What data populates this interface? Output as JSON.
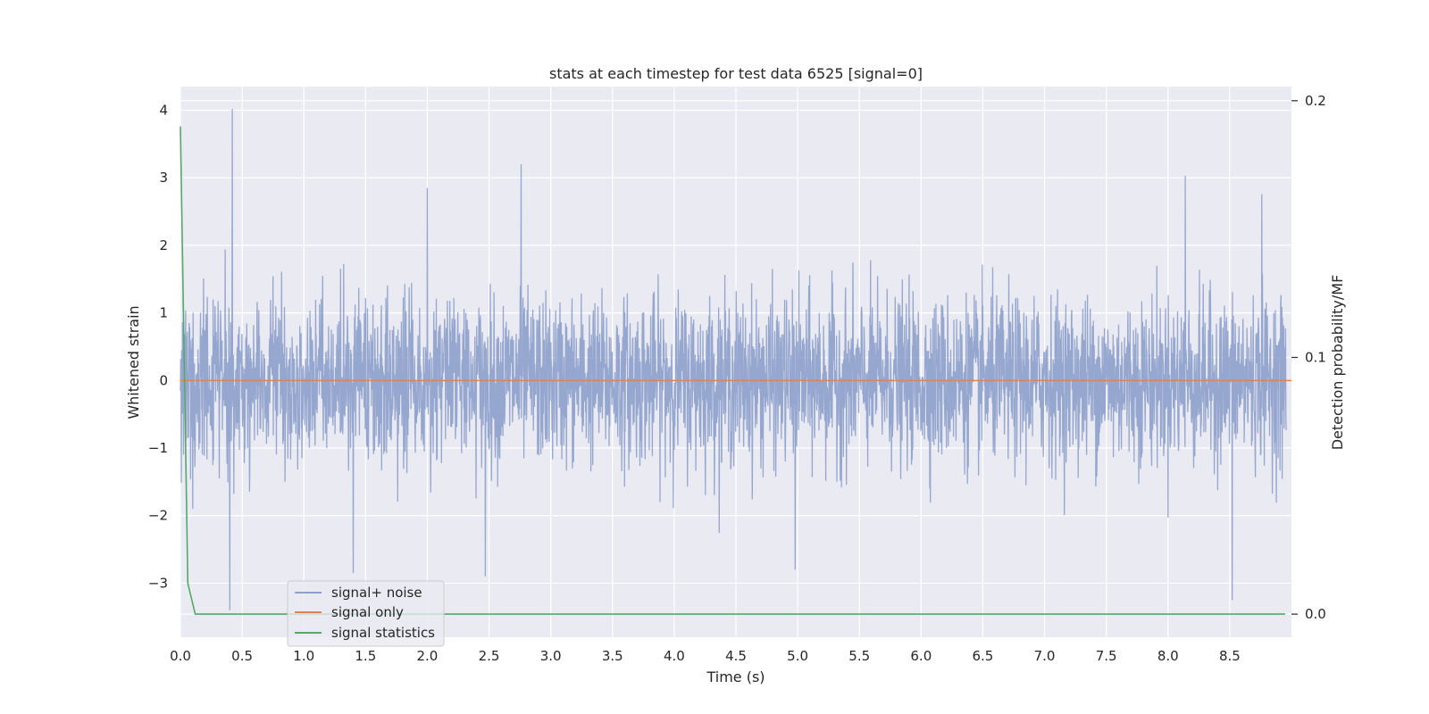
{
  "chart_data": {
    "type": "line",
    "title": "stats at each timestep for test data 6525 [signal=0]",
    "xlabel": "Time (s)",
    "ylabel": "Whitened strain",
    "y2label": "Detection probability/MF",
    "xlim": [
      0.0,
      9.0
    ],
    "ylim": [
      -3.8,
      4.35
    ],
    "y2lim": [
      -0.009,
      0.2055
    ],
    "xticks": [
      0.0,
      0.5,
      1.0,
      1.5,
      2.0,
      2.5,
      3.0,
      3.5,
      4.0,
      4.5,
      5.0,
      5.5,
      6.0,
      6.5,
      7.0,
      7.5,
      8.0,
      8.5
    ],
    "xtick_labels": [
      "0.0",
      "0.5",
      "1.0",
      "1.5",
      "2.0",
      "2.5",
      "3.0",
      "3.5",
      "4.0",
      "4.5",
      "5.0",
      "5.5",
      "6.0",
      "6.5",
      "7.0",
      "7.5",
      "8.0",
      "8.5"
    ],
    "yticks": [
      -3,
      -2,
      -1,
      0,
      1,
      2,
      3,
      4
    ],
    "ytick_labels": [
      "−3",
      "−2",
      "−1",
      "0",
      "1",
      "2",
      "3",
      "4"
    ],
    "y2ticks": [
      0.0,
      0.1,
      0.2
    ],
    "y2tick_labels": [
      "0.0",
      "0.1",
      "0.2"
    ],
    "grid": true,
    "legend_position": "lower-left",
    "colors": {
      "signal_noise": "#8da0cb",
      "signal_only": "#dd8452",
      "signal_statistics": "#55a868",
      "plot_bg": "#eaeaf2",
      "grid": "#ffffff"
    },
    "series": [
      {
        "name": "signal+ noise",
        "axis": "left",
        "sample_dt": 0.0025,
        "noise_std": 0.6,
        "peaks": [
          {
            "x": 0.42,
            "y": 4.02
          },
          {
            "x": 0.4,
            "y": -3.4
          },
          {
            "x": 2.0,
            "y": 2.85
          },
          {
            "x": 2.76,
            "y": 3.2
          },
          {
            "x": 1.4,
            "y": -2.85
          },
          {
            "x": 2.47,
            "y": -2.9
          },
          {
            "x": 4.98,
            "y": -2.8
          },
          {
            "x": 8.14,
            "y": 3.03
          },
          {
            "x": 8.52,
            "y": -3.25
          },
          {
            "x": 8.76,
            "y": 2.76
          }
        ]
      },
      {
        "name": "signal only",
        "axis": "left",
        "x": [
          0.0,
          9.0
        ],
        "y": [
          0.0,
          0.0
        ]
      },
      {
        "name": "signal statistics",
        "axis": "right",
        "x": [
          0.0,
          0.06,
          0.12,
          0.25,
          1.0,
          2.0,
          3.0,
          4.0,
          5.0,
          6.0,
          7.0,
          8.0,
          8.95
        ],
        "y": [
          0.19,
          0.012,
          0.0,
          0.0,
          0.0,
          0.0,
          0.0,
          0.0,
          0.0,
          0.0,
          0.0,
          0.0,
          0.0
        ]
      }
    ]
  }
}
